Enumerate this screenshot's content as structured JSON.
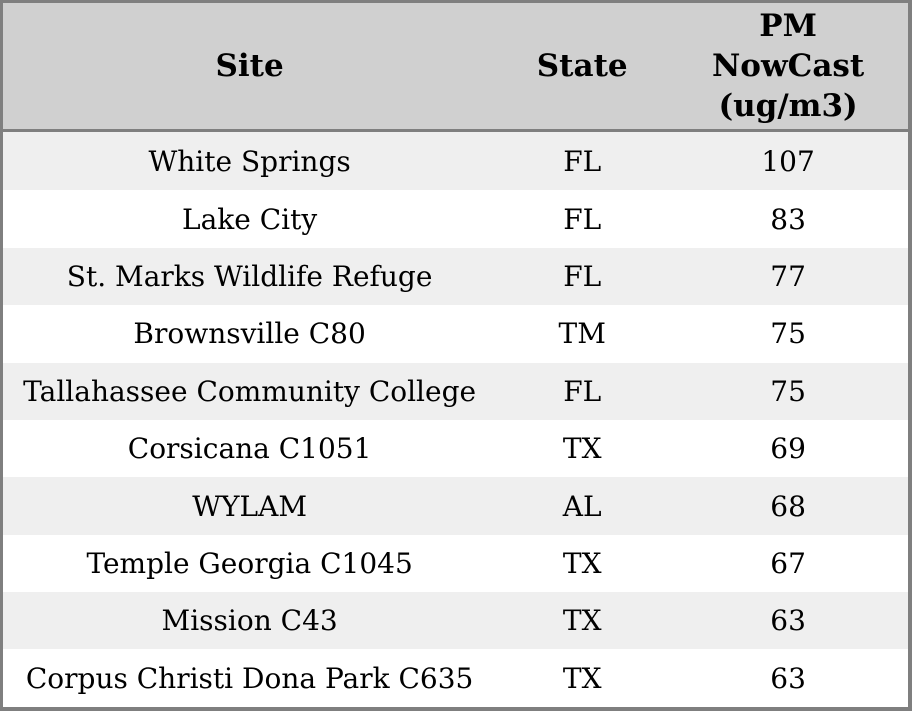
{
  "chart_data": {
    "type": "table",
    "title": "",
    "columns": [
      "Site",
      "State",
      "PM NowCast (ug/m3)"
    ],
    "rows": [
      [
        "White Springs",
        "FL",
        107
      ],
      [
        "Lake City",
        "FL",
        83
      ],
      [
        "St. Marks Wildlife Refuge",
        "FL",
        77
      ],
      [
        "Brownsville C80",
        "TM",
        75
      ],
      [
        "Tallahassee Community College",
        "FL",
        75
      ],
      [
        "Corsicana C1051",
        "TX",
        69
      ],
      [
        "WYLAM",
        "AL",
        68
      ],
      [
        "Temple Georgia C1045",
        "TX",
        67
      ],
      [
        "Mission C43",
        "TX",
        63
      ],
      [
        "Corpus Christi Dona Park C635",
        "TX",
        63
      ]
    ],
    "layout": {
      "grid": "none",
      "row_striping": true,
      "header_position": "top"
    }
  },
  "header_display": {
    "pm_nowcast_lines": [
      "PM",
      "NowCast",
      "(ug/m3)"
    ]
  },
  "colors": {
    "border": "#7f7f7f",
    "header_bg": "#d0d0d0",
    "row_alt_bg": "#efefef",
    "row_bg": "#ffffff",
    "text": "#000000"
  }
}
